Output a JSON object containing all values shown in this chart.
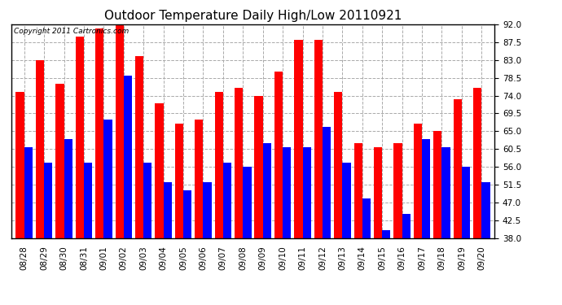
{
  "title": "Outdoor Temperature Daily High/Low 20110921",
  "copyright": "Copyright 2011 Cartronics.com",
  "dates": [
    "08/28",
    "08/29",
    "08/30",
    "08/31",
    "09/01",
    "09/02",
    "09/03",
    "09/04",
    "09/05",
    "09/06",
    "09/07",
    "09/08",
    "09/09",
    "09/10",
    "09/11",
    "09/12",
    "09/13",
    "09/14",
    "09/15",
    "09/16",
    "09/17",
    "09/18",
    "09/19",
    "09/20"
  ],
  "highs": [
    75,
    83,
    77,
    89,
    91,
    93,
    84,
    72,
    67,
    68,
    75,
    76,
    74,
    80,
    88,
    88,
    75,
    62,
    61,
    62,
    67,
    65,
    73,
    76
  ],
  "lows": [
    61,
    57,
    63,
    57,
    68,
    79,
    57,
    52,
    50,
    52,
    57,
    56,
    62,
    61,
    61,
    66,
    57,
    48,
    40,
    44,
    63,
    61,
    56,
    52
  ],
  "high_color": "#ff0000",
  "low_color": "#0000ff",
  "bg_color": "#ffffff",
  "grid_color": "#aaaaaa",
  "ymin": 38.0,
  "ymax": 92.0,
  "yticks": [
    38.0,
    42.5,
    47.0,
    51.5,
    56.0,
    60.5,
    65.0,
    69.5,
    74.0,
    78.5,
    83.0,
    87.5,
    92.0
  ],
  "bar_width": 0.42,
  "title_fontsize": 11,
  "tick_fontsize": 7.5,
  "copyright_fontsize": 6.5,
  "figsize": [
    6.9,
    3.75
  ],
  "dpi": 100
}
